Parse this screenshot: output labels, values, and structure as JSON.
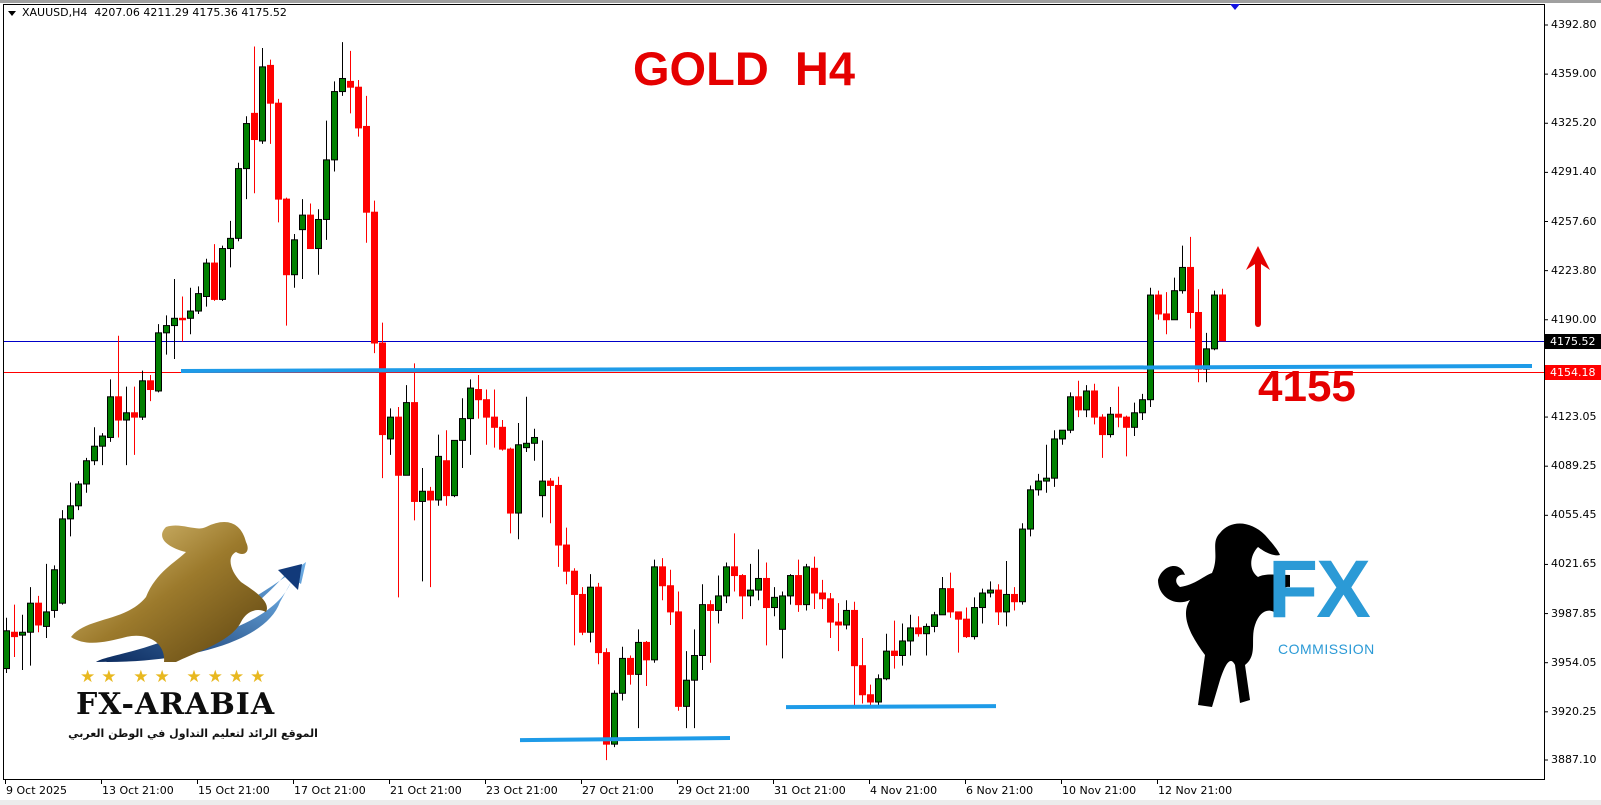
{
  "header": {
    "symbol": "XAUUSD,H4",
    "ohlc": "4207.06 4211.29 4175.36 4175.52"
  },
  "annotations": {
    "title": "GOLD  H4",
    "level_label": "4155",
    "arrow_direction": "up"
  },
  "logos": {
    "left": {
      "name": "FX-ARABIA",
      "tagline": "الموقع الرائد لتعليم التداول في الوطن العربي",
      "stars": 8
    },
    "right": {
      "name": "FX",
      "subtitle": "COMMISSION"
    }
  },
  "colors": {
    "bull": "#008000",
    "bear": "#ff0000",
    "support_line": "#1e9be8",
    "bid_line": "#0000c8",
    "ask_line": "#ff0000",
    "annotation": "#e50000"
  },
  "chart_data": {
    "type": "candlestick",
    "symbol": "XAUUSD",
    "timeframe": "H4",
    "ylim": [
      3887.1,
      4392.8
    ],
    "grid": false,
    "y_ticks": [
      "4392.80",
      "4359.00",
      "4325.20",
      "4291.40",
      "4257.60",
      "4223.80",
      "4190.00",
      "4123.05",
      "4089.25",
      "4055.45",
      "4021.65",
      "3987.85",
      "3954.05",
      "3920.25",
      "3887.10"
    ],
    "x_ticks": [
      "9 Oct 2025",
      "13 Oct 21:00",
      "15 Oct 21:00",
      "17 Oct 21:00",
      "21 Oct 21:00",
      "23 Oct 21:00",
      "27 Oct 21:00",
      "29 Oct 21:00",
      "31 Oct 21:00",
      "4 Nov 21:00",
      "6 Nov 21:00",
      "10 Nov 21:00",
      "12 Nov 21:00"
    ],
    "current_price_labels": {
      "bid": "4175.52",
      "ask": "4154.18"
    },
    "horizontal_lines": [
      {
        "name": "bid",
        "price": 4175.52
      },
      {
        "name": "ask",
        "price": 4154.18
      }
    ],
    "support_lines": [
      {
        "price_start": 4154.7,
        "price_end": 4158.2
      },
      {
        "price_start": 3900.8,
        "price_end": 3902.2
      },
      {
        "price_start": 3923.5,
        "price_end": 3924.2
      }
    ],
    "candles_ohlc": [
      [
        3950,
        3985,
        3947,
        3976
      ],
      [
        3975,
        3994,
        3958,
        3972
      ],
      [
        3973,
        3987,
        3949,
        3975
      ],
      [
        3975,
        4006,
        3952,
        3995
      ],
      [
        3995,
        4000,
        3975,
        3980
      ],
      [
        3979,
        4022,
        3971,
        3989
      ],
      [
        3990,
        4021,
        3985,
        4018
      ],
      [
        3995,
        4059,
        3994,
        4053
      ],
      [
        4053,
        4078,
        4041,
        4062
      ],
      [
        4062,
        4079,
        4059,
        4077
      ],
      [
        4077,
        4095,
        4071,
        4093
      ],
      [
        4093,
        4116,
        4090,
        4103
      ],
      [
        4103,
        4112,
        4090,
        4110
      ],
      [
        4109,
        4149,
        4106,
        4137
      ],
      [
        4137,
        4179,
        4109,
        4121
      ],
      [
        4121,
        4144,
        4090,
        4126
      ],
      [
        4126,
        4144,
        4097,
        4123
      ],
      [
        4123,
        4155,
        4121,
        4148
      ],
      [
        4148,
        4152,
        4134,
        4142
      ],
      [
        4141,
        4187,
        4140,
        4181
      ],
      [
        4181,
        4193,
        4166,
        4186
      ],
      [
        4186,
        4218,
        4163,
        4191
      ],
      [
        4191,
        4206,
        4175,
        4190
      ],
      [
        4191,
        4212,
        4180,
        4196
      ],
      [
        4196,
        4213,
        4194,
        4208
      ],
      [
        4206,
        4232,
        4199,
        4229
      ],
      [
        4229,
        4242,
        4203,
        4204
      ],
      [
        4204,
        4241,
        4203,
        4239
      ],
      [
        4239,
        4258,
        4226,
        4246
      ],
      [
        4246,
        4298,
        4244,
        4294
      ],
      [
        4294,
        4330,
        4273,
        4325
      ],
      [
        4332,
        4378,
        4277,
        4314
      ],
      [
        4313,
        4377,
        4311,
        4364
      ],
      [
        4365,
        4369,
        4311,
        4339
      ],
      [
        4339,
        4342,
        4257,
        4273
      ],
      [
        4273,
        4274,
        4186,
        4221
      ],
      [
        4221,
        4249,
        4212,
        4245
      ],
      [
        4252,
        4273,
        4218,
        4262
      ],
      [
        4262,
        4270,
        4239,
        4239
      ],
      [
        4239,
        4266,
        4221,
        4259
      ],
      [
        4259,
        4327,
        4245,
        4300
      ],
      [
        4300,
        4354,
        4292,
        4347
      ],
      [
        4347,
        4381,
        4344,
        4356
      ],
      [
        4354,
        4375,
        4332,
        4350
      ],
      [
        4350,
        4355,
        4316,
        4322
      ],
      [
        4323,
        4344,
        4243,
        4264
      ],
      [
        4264,
        4272,
        4167,
        4174
      ],
      [
        4174,
        4188,
        4081,
        4111
      ],
      [
        4108,
        4129,
        4097,
        4123
      ],
      [
        4123,
        4130,
        3999,
        4083
      ],
      [
        4083,
        4145,
        4083,
        4133
      ],
      [
        4133,
        4160,
        4052,
        4065
      ],
      [
        4065,
        4088,
        4010,
        4072
      ],
      [
        4072,
        4075,
        4006,
        4066
      ],
      [
        4066,
        4111,
        4062,
        4096
      ],
      [
        4093,
        4114,
        4062,
        4069
      ],
      [
        4069,
        4107,
        4068,
        4107
      ],
      [
        4107,
        4136,
        4088,
        4122
      ],
      [
        4122,
        4149,
        4097,
        4143
      ],
      [
        4142,
        4152,
        4122,
        4135
      ],
      [
        4135,
        4142,
        4104,
        4123
      ],
      [
        4123,
        4142,
        4102,
        4116
      ],
      [
        4116,
        4121,
        4100,
        4101
      ],
      [
        4101,
        4102,
        4043,
        4057
      ],
      [
        4057,
        4119,
        4039,
        4104
      ],
      [
        4102,
        4137,
        4099,
        4105
      ],
      [
        4105,
        4115,
        4093,
        4109
      ],
      [
        4069,
        4107,
        4054,
        4079
      ],
      [
        4079,
        4081,
        4050,
        4076
      ],
      [
        4076,
        4082,
        4020,
        4035
      ],
      [
        4035,
        4047,
        4008,
        4017
      ],
      [
        4017,
        4019,
        3966,
        4001
      ],
      [
        4001,
        4006,
        3973,
        3975
      ],
      [
        3975,
        4015,
        3968,
        4006
      ],
      [
        4006,
        4009,
        3953,
        3961
      ],
      [
        3961,
        3964,
        3887,
        3898
      ],
      [
        3898,
        3935,
        3896,
        3933
      ],
      [
        3933,
        3965,
        3928,
        3957
      ],
      [
        3957,
        3959,
        3939,
        3946
      ],
      [
        3946,
        3977,
        3909,
        3968
      ],
      [
        3968,
        3969,
        3938,
        3956
      ],
      [
        3956,
        4025,
        3954,
        4020
      ],
      [
        4020,
        4026,
        3997,
        4007
      ],
      [
        4007,
        4018,
        3980,
        3989
      ],
      [
        3989,
        4003,
        3921,
        3924
      ],
      [
        3924,
        3962,
        3909,
        3942
      ],
      [
        3942,
        3977,
        3909,
        3959
      ],
      [
        3959,
        4008,
        3949,
        3994
      ],
      [
        3994,
        3997,
        3954,
        3990
      ],
      [
        3990,
        4014,
        3981,
        4000
      ],
      [
        4000,
        4023,
        3995,
        4020
      ],
      [
        4020,
        4043,
        4003,
        4014
      ],
      [
        4014,
        4015,
        3984,
        4000
      ],
      [
        4000,
        4022,
        3993,
        4004
      ],
      [
        4004,
        4032,
        3997,
        4012
      ],
      [
        4012,
        4023,
        3966,
        3992
      ],
      [
        3992,
        4006,
        3986,
        3999
      ],
      [
        3977,
        4003,
        3957,
        4000
      ],
      [
        4000,
        4015,
        3994,
        4014
      ],
      [
        4014,
        4025,
        3989,
        3994
      ],
      [
        3994,
        4022,
        3990,
        4020
      ],
      [
        4019,
        4027,
        3991,
        4002
      ],
      [
        4002,
        4011,
        3991,
        3998
      ],
      [
        3998,
        4002,
        3971,
        3982
      ],
      [
        3982,
        3995,
        3962,
        3980
      ],
      [
        3980,
        3997,
        3977,
        3990
      ],
      [
        3990,
        3996,
        3924,
        3952
      ],
      [
        3952,
        3971,
        3926,
        3932
      ],
      [
        3932,
        3939,
        3924,
        3927
      ],
      [
        3927,
        3946,
        3924,
        3943
      ],
      [
        3943,
        3974,
        3942,
        3962
      ],
      [
        3962,
        3983,
        3950,
        3959
      ],
      [
        3959,
        3981,
        3952,
        3969
      ],
      [
        3969,
        3987,
        3959,
        3978
      ],
      [
        3978,
        3986,
        3972,
        3974
      ],
      [
        3974,
        3981,
        3959,
        3979
      ],
      [
        3979,
        3989,
        3975,
        3987
      ],
      [
        3987,
        4013,
        3987,
        4005
      ],
      [
        4005,
        4016,
        3985,
        3989
      ],
      [
        3989,
        3989,
        3961,
        3984
      ],
      [
        3984,
        3992,
        3971,
        3972
      ],
      [
        3972,
        3999,
        3970,
        3992
      ],
      [
        3992,
        4005,
        3981,
        4002
      ],
      [
        4002,
        4010,
        3999,
        4004
      ],
      [
        4004,
        4008,
        3980,
        3989
      ],
      [
        3989,
        4024,
        3979,
        4001
      ],
      [
        4001,
        4006,
        3990,
        3996
      ],
      [
        3996,
        4050,
        3994,
        4046
      ],
      [
        4046,
        4076,
        4041,
        4073
      ],
      [
        4073,
        4084,
        4069,
        4079
      ],
      [
        4079,
        4104,
        4071,
        4081
      ],
      [
        4081,
        4114,
        4075,
        4108
      ],
      [
        4108,
        4114,
        4104,
        4114
      ],
      [
        4114,
        4140,
        4112,
        4137
      ],
      [
        4137,
        4148,
        4123,
        4128
      ],
      [
        4128,
        4145,
        4123,
        4141
      ],
      [
        4141,
        4146,
        4118,
        4123
      ],
      [
        4123,
        4125,
        4095,
        4111
      ],
      [
        4111,
        4130,
        4109,
        4125
      ],
      [
        4125,
        4144,
        4116,
        4123
      ],
      [
        4123,
        4124,
        4096,
        4116
      ],
      [
        4116,
        4133,
        4110,
        4126
      ],
      [
        4126,
        4139,
        4121,
        4135
      ],
      [
        4135,
        4212,
        4130,
        4207
      ],
      [
        4207,
        4210,
        4190,
        4194
      ],
      [
        4194,
        4209,
        4180,
        4190
      ],
      [
        4190,
        4219,
        4190,
        4210
      ],
      [
        4210,
        4241,
        4208,
        4226
      ],
      [
        4226,
        4247,
        4184,
        4195
      ],
      [
        4195,
        4211,
        4147,
        4156
      ],
      [
        4156,
        4181,
        4147,
        4170
      ],
      [
        4170,
        4210,
        4169,
        4207
      ],
      [
        4207.06,
        4211.29,
        4175.36,
        4175.52
      ]
    ]
  }
}
